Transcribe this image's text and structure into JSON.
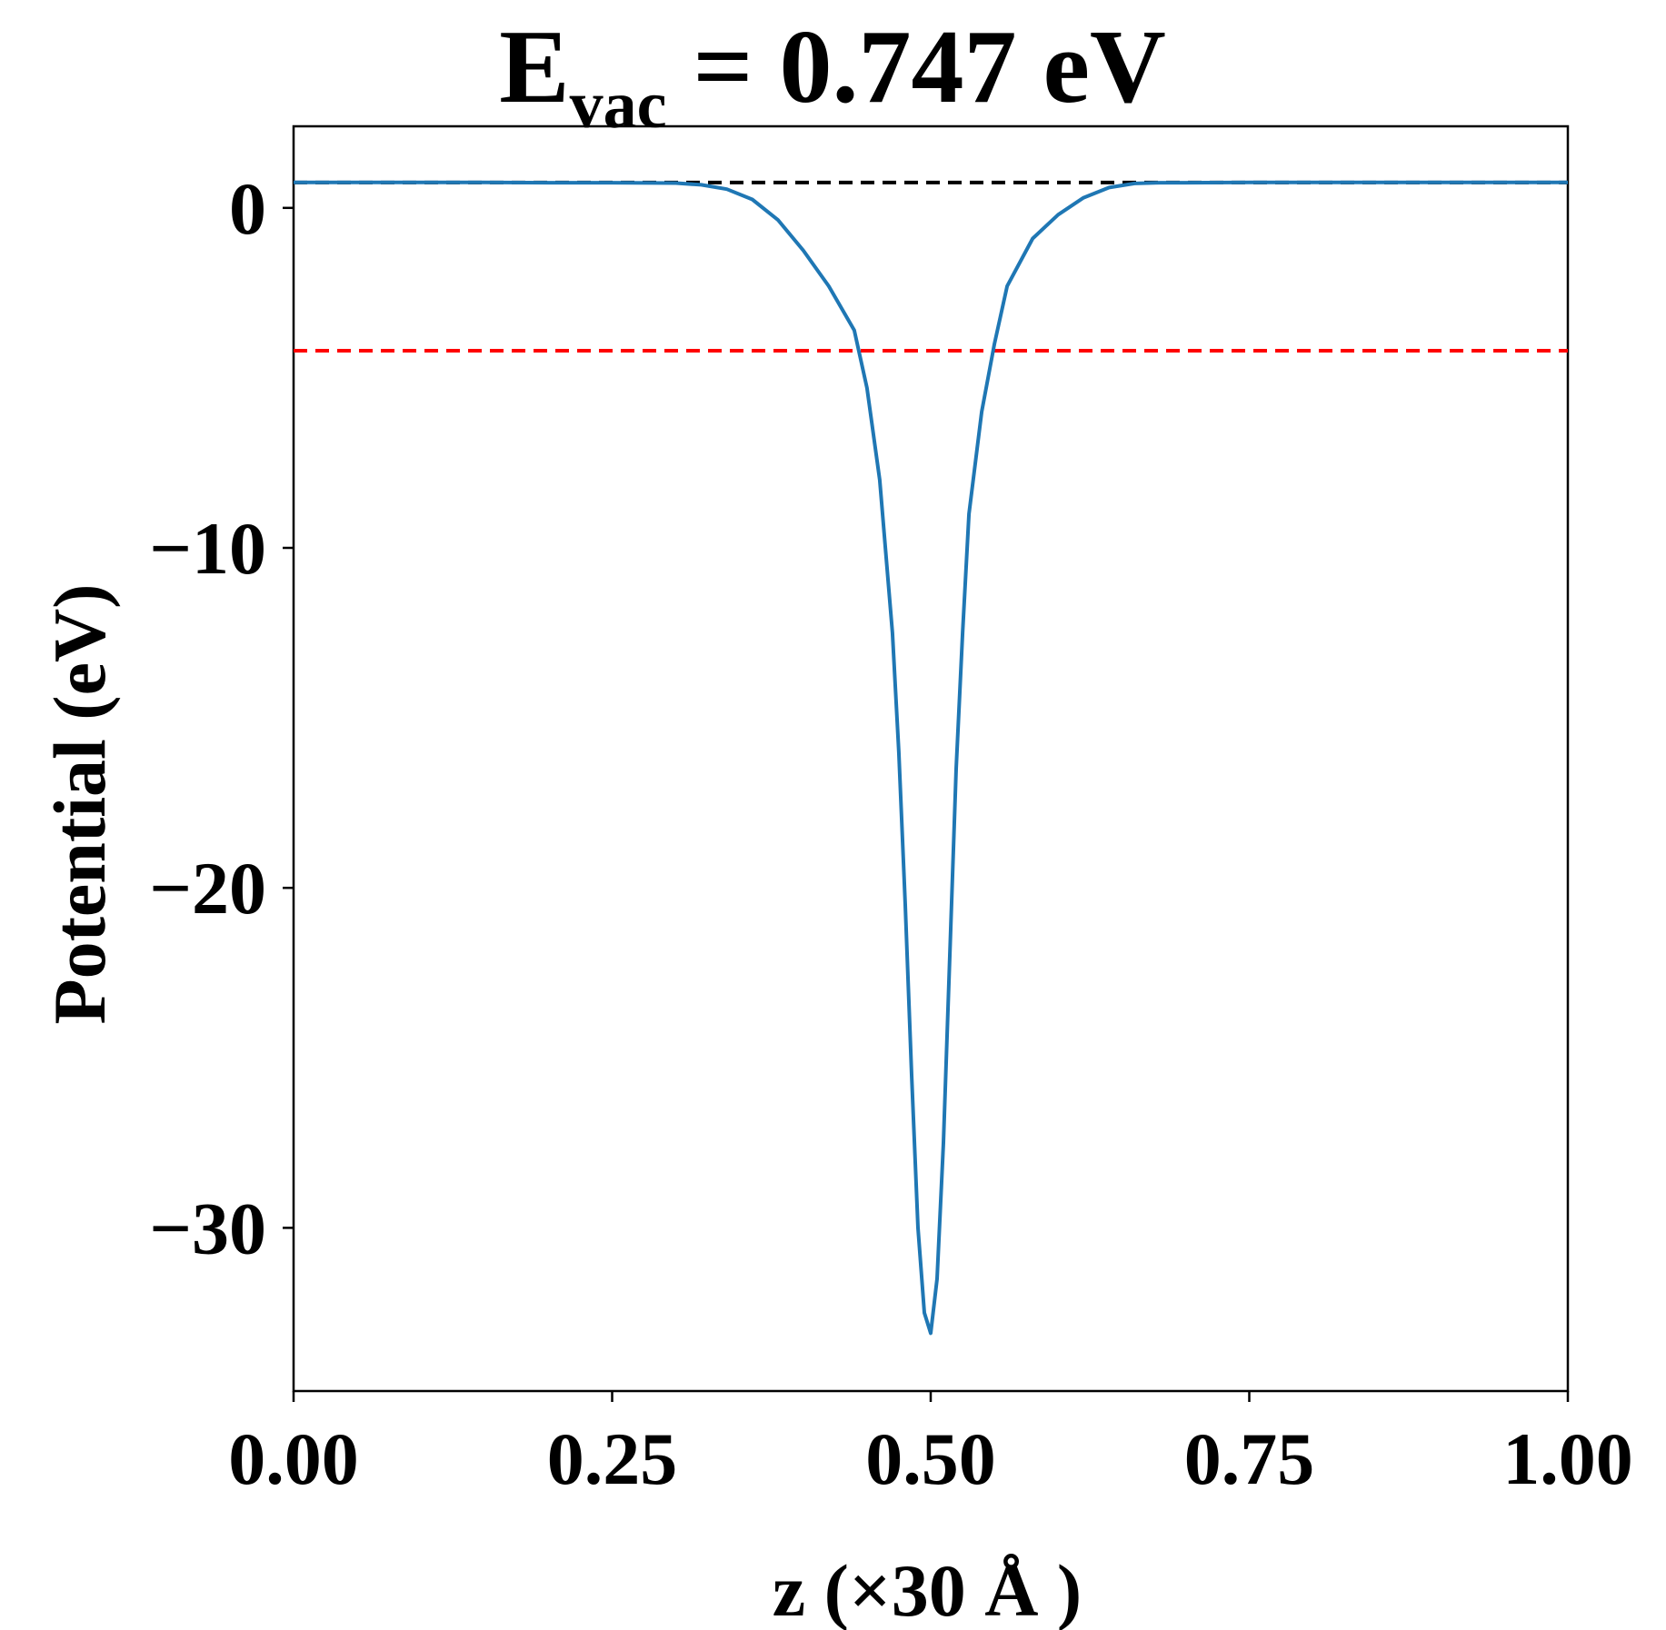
{
  "chart_data": {
    "type": "line",
    "title": {
      "main": "E",
      "subscript": "vac",
      "rest": " = 0.747 eV"
    },
    "xlabel": "z (×30 Å )",
    "ylabel": "Potential (eV)",
    "xlim": [
      0.0,
      1.0
    ],
    "ylim": [
      -34.8,
      2.4
    ],
    "xticks": [
      0.0,
      0.25,
      0.5,
      0.75,
      1.0
    ],
    "xtick_labels": [
      "0.00",
      "0.25",
      "0.50",
      "0.75",
      "1.00"
    ],
    "yticks": [
      0,
      -10,
      -20,
      -30
    ],
    "ytick_labels": [
      "0",
      "−10",
      "−20",
      "−30"
    ],
    "grid": false,
    "series": [
      {
        "style": "solid",
        "color": "#1f77b4",
        "x": [
          0.0,
          0.05,
          0.1,
          0.15,
          0.2,
          0.25,
          0.3,
          0.32,
          0.34,
          0.36,
          0.38,
          0.4,
          0.42,
          0.44,
          0.45,
          0.46,
          0.47,
          0.475,
          0.48,
          0.485,
          0.49,
          0.495,
          0.5,
          0.505,
          0.51,
          0.515,
          0.52,
          0.525,
          0.53,
          0.54,
          0.55,
          0.56,
          0.58,
          0.6,
          0.62,
          0.64,
          0.66,
          0.68,
          0.7,
          0.75,
          0.8,
          0.85,
          0.9,
          0.95,
          1.0
        ],
        "y": [
          0.75,
          0.75,
          0.75,
          0.75,
          0.74,
          0.74,
          0.73,
          0.68,
          0.55,
          0.25,
          -0.35,
          -1.25,
          -2.3,
          -3.6,
          -5.3,
          -8.0,
          -12.5,
          -16.0,
          -20.5,
          -25.5,
          -30.0,
          -32.5,
          -33.1,
          -31.5,
          -27.5,
          -22.0,
          -16.5,
          -12.5,
          -9.0,
          -6.0,
          -4.0,
          -2.3,
          -0.9,
          -0.2,
          0.3,
          0.6,
          0.72,
          0.74,
          0.74,
          0.75,
          0.75,
          0.75,
          0.75,
          0.75,
          0.75
        ]
      }
    ],
    "reference_lines": [
      {
        "y": 0.747,
        "color": "#000000",
        "style": "dashed"
      },
      {
        "y": -4.2,
        "color": "#ff0000",
        "style": "dashed"
      }
    ]
  }
}
